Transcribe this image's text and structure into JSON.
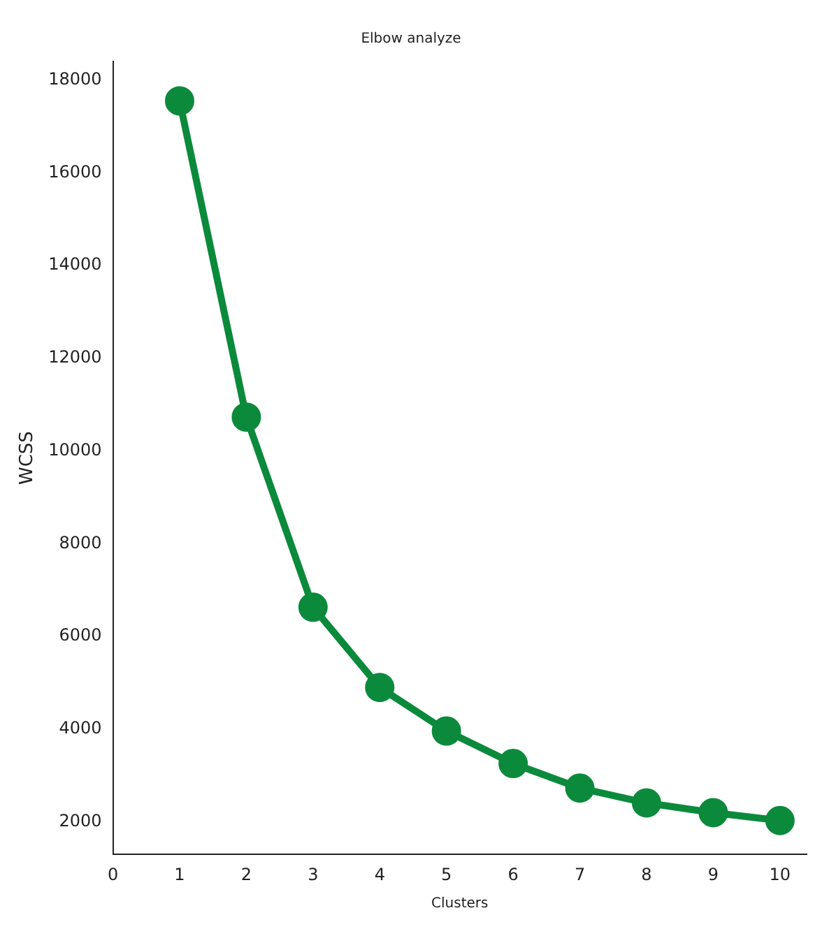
{
  "chart_data": {
    "type": "line",
    "title": "Elbow analyze",
    "xlabel": "Clusters",
    "ylabel": "WCSS",
    "x": [
      1,
      2,
      3,
      4,
      5,
      6,
      7,
      8,
      9,
      10
    ],
    "series": [
      {
        "color": "#0b8a3c",
        "values": [
          17550,
          10730,
          6630,
          4900,
          3960,
          3260,
          2730,
          2410,
          2200,
          2030
        ]
      }
    ],
    "xlim": [
      0,
      10.4
    ],
    "xticks": [
      0,
      1,
      2,
      3,
      4,
      5,
      6,
      7,
      8,
      9,
      10
    ],
    "ylim": [
      1300,
      18400
    ],
    "yticks": [
      2000,
      4000,
      6000,
      8000,
      10000,
      12000,
      14000,
      16000,
      18000
    ],
    "grid": false,
    "legend": false,
    "marker": "circle",
    "line_style": "solid"
  }
}
